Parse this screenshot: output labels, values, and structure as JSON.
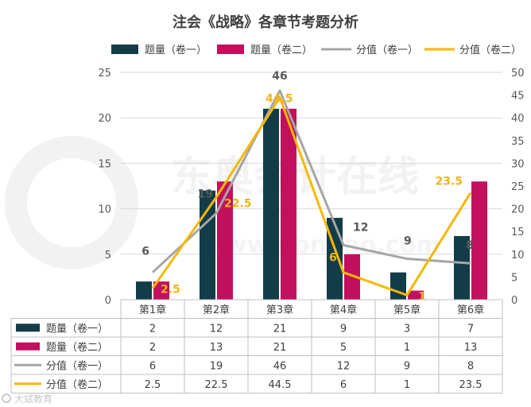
{
  "chart_data": {
    "type": "bar+line",
    "title": "注会《战略》各章节考题分析",
    "categories": [
      "第1章",
      "第2章",
      "第3章",
      "第4章",
      "第5章",
      "第6章"
    ],
    "series": [
      {
        "name": "题量（卷一）",
        "type": "bar",
        "axis": "left",
        "color": "#123c48",
        "values": [
          2,
          12,
          21,
          9,
          3,
          7
        ]
      },
      {
        "name": "题量（卷二）",
        "type": "bar",
        "axis": "left",
        "color": "#c2105e",
        "values": [
          2,
          13,
          21,
          5,
          1,
          13
        ]
      },
      {
        "name": "分值（卷一）",
        "type": "line",
        "axis": "right",
        "color": "#a6a6a6",
        "values": [
          6,
          19,
          46,
          12,
          9,
          8
        ]
      },
      {
        "name": "分值（卷二）",
        "type": "line",
        "axis": "right",
        "color": "#f5b800",
        "values": [
          2.5,
          22.5,
          44.5,
          6,
          1,
          23.5
        ]
      }
    ],
    "left_ylim": [
      0,
      25
    ],
    "left_ticks": [
      0,
      5,
      10,
      15,
      20,
      25
    ],
    "right_ylim": [
      0,
      50
    ],
    "right_ticks": [
      0,
      5,
      10,
      15,
      20,
      25,
      30,
      35,
      40,
      45,
      50
    ],
    "data_table": true,
    "legend_position": "top"
  },
  "watermark": {
    "text": "东奥会计在线",
    "url": "www.dongao.com"
  },
  "footer_logo": {
    "text": "大斌教育"
  }
}
